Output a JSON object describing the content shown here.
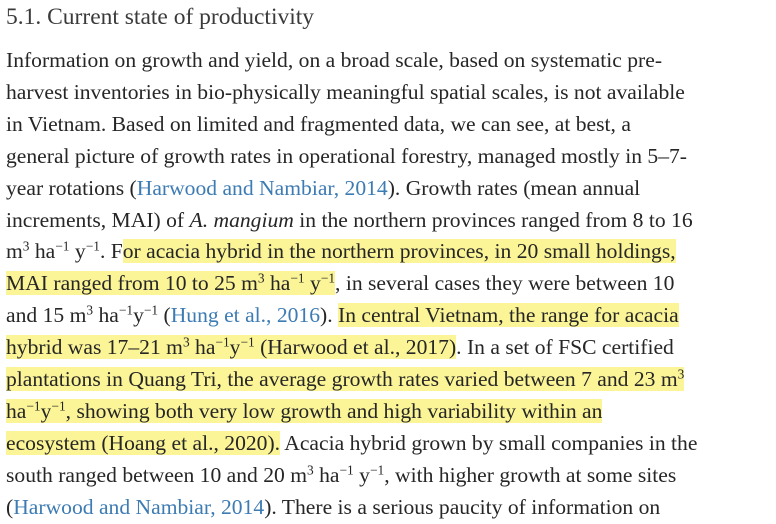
{
  "section": {
    "heading": "5.1. Current state of productivity"
  },
  "paragraph": {
    "lines": [
      [
        {
          "text": "Information on growth and yield, on a broad scale, based on systematic pre-"
        }
      ],
      [
        {
          "text": "harvest inventories in bio-physically meaningful spatial scales, is not available"
        }
      ],
      [
        {
          "text": "in Vietnam. Based on limited and fragmented data, we can see, at best, a"
        }
      ],
      [
        {
          "text": "general picture of growth rates in operational forestry, managed mostly in 5–7-"
        }
      ],
      [
        {
          "text": "year rotations ("
        },
        {
          "text": "Harwood and Nambiar, 2014",
          "cite": true
        },
        {
          "text": "). Growth rates (mean annual"
        }
      ],
      [
        {
          "text": "increments, MAI) of "
        },
        {
          "text": "A. mangium",
          "em": true
        },
        {
          "text": " in the northern provinces ranged from 8 to 16"
        }
      ],
      [
        {
          "text": "m"
        },
        {
          "text": "3",
          "sup": true
        },
        {
          "text": " ha"
        },
        {
          "text": "−1",
          "sup": true
        },
        {
          "text": " y"
        },
        {
          "text": "−1",
          "sup": true
        },
        {
          "text": ". F"
        },
        {
          "text": "or acacia hybrid in the northern provinces, in 20 small holdings,",
          "hl": true
        }
      ],
      [
        {
          "text": "MAI ranged from 10 to 25 m",
          "hl": true
        },
        {
          "text": "3",
          "sup": true,
          "hl": true
        },
        {
          "text": " ha",
          "hl": true
        },
        {
          "text": "−1",
          "sup": true,
          "hl": true
        },
        {
          "text": " y",
          "hl": true
        },
        {
          "text": "−1",
          "sup": true,
          "hl": true
        },
        {
          "text": ", in several cases they were between 10"
        }
      ],
      [
        {
          "text": "and 15 m"
        },
        {
          "text": "3",
          "sup": true
        },
        {
          "text": " ha"
        },
        {
          "text": "−1",
          "sup": true
        },
        {
          "text": "y"
        },
        {
          "text": "−1",
          "sup": true
        },
        {
          "text": " ("
        },
        {
          "text": "Hung et al., 2016",
          "cite": true
        },
        {
          "text": "). "
        },
        {
          "text": "In central Vietnam, the range for acacia",
          "hl": true
        }
      ],
      [
        {
          "text": "hybrid was 17–21 m",
          "hl": true
        },
        {
          "text": "3",
          "sup": true,
          "hl": true
        },
        {
          "text": " ha",
          "hl": true
        },
        {
          "text": "−1",
          "sup": true,
          "hl": true
        },
        {
          "text": "y",
          "hl": true
        },
        {
          "text": "−1",
          "sup": true,
          "hl": true
        },
        {
          "text": " (Harwood et al., 2017)",
          "hl": true
        },
        {
          "text": ". In a set of FSC certified"
        }
      ],
      [
        {
          "text": "plantations in Quang Tri, the average growth rates varied between 7 and 23 m",
          "hl": true
        },
        {
          "text": "3",
          "sup": true,
          "hl": true
        }
      ],
      [
        {
          "text": "ha",
          "hl": true
        },
        {
          "text": "−1",
          "sup": true,
          "hl": true
        },
        {
          "text": "y",
          "hl": true
        },
        {
          "text": "−1",
          "sup": true,
          "hl": true
        },
        {
          "text": ", showing both very low growth and high variability within an",
          "hl": true
        }
      ],
      [
        {
          "text": "ecosystem (Hoang et al., 2020).",
          "hl": true
        },
        {
          "text": " Acacia hybrid grown by small companies in the"
        }
      ],
      [
        {
          "text": "south ranged between 10 and 20 m"
        },
        {
          "text": "3",
          "sup": true
        },
        {
          "text": " ha"
        },
        {
          "text": "−1",
          "sup": true
        },
        {
          "text": " y"
        },
        {
          "text": "−1",
          "sup": true
        },
        {
          "text": ", with higher growth at some sites"
        }
      ],
      [
        {
          "text": "("
        },
        {
          "text": "Harwood and Nambiar, 2014",
          "cite": true
        },
        {
          "text": "). There is a serious paucity of information on"
        }
      ]
    ]
  }
}
